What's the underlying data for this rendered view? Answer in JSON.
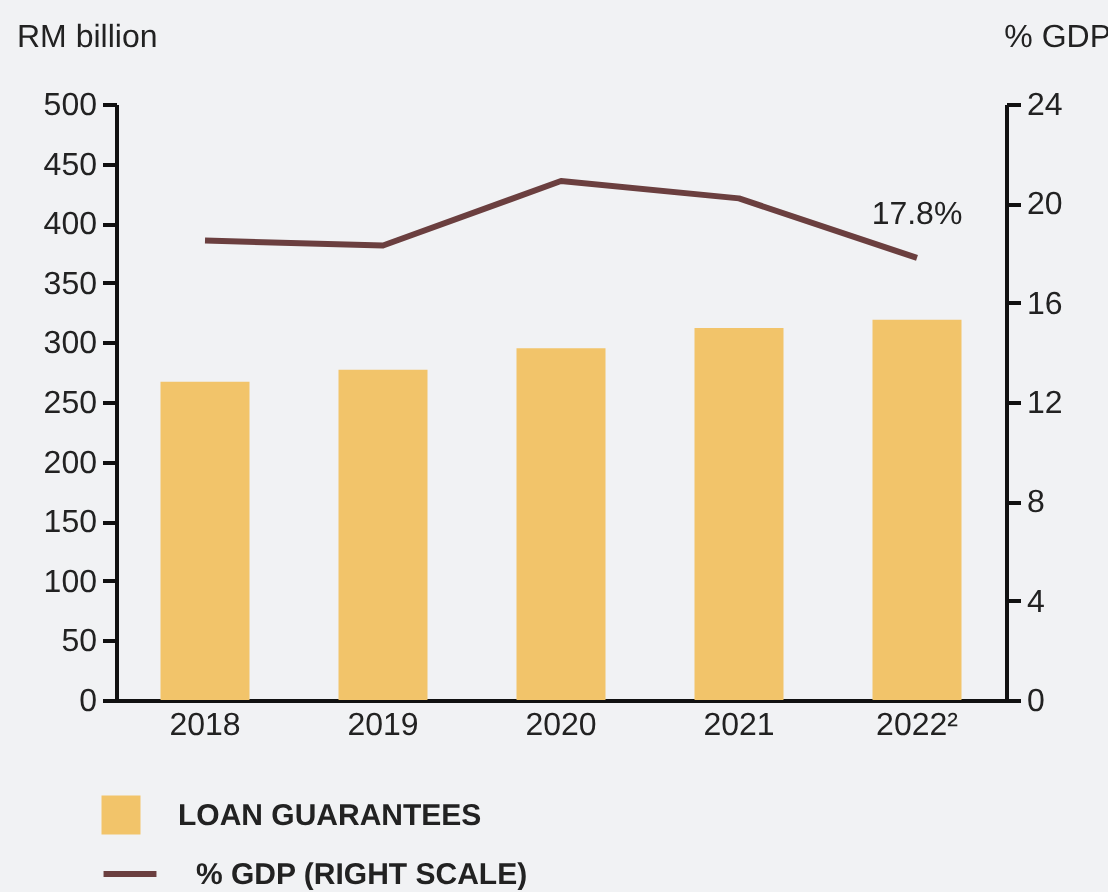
{
  "chart_data": {
    "type": "bar",
    "ylabel": "RM billion",
    "y2label": "% GDP",
    "categories": [
      "2018",
      "2019",
      "2020",
      "2021",
      "2022²"
    ],
    "series": [
      {
        "name": "LOAN GUARANTEES",
        "color": "#f2c46a",
        "values": [
          267,
          277,
          295,
          312,
          319
        ]
      },
      {
        "name": "% GDP (RIGHT SCALE)",
        "type": "line",
        "axis": "y2",
        "color": "#6b3f3f",
        "values": [
          18.5,
          18.3,
          20.9,
          20.2,
          17.8
        ],
        "value_labels": [
          null,
          null,
          null,
          null,
          "17.8%"
        ]
      }
    ],
    "ylim": [
      0,
      500
    ],
    "yticks": [
      0,
      50,
      100,
      150,
      200,
      250,
      300,
      350,
      400,
      450,
      500
    ],
    "y2lim": [
      0,
      24
    ],
    "y2ticks": [
      0,
      4,
      8,
      12,
      16,
      20,
      24
    ],
    "legend": "bottom"
  }
}
